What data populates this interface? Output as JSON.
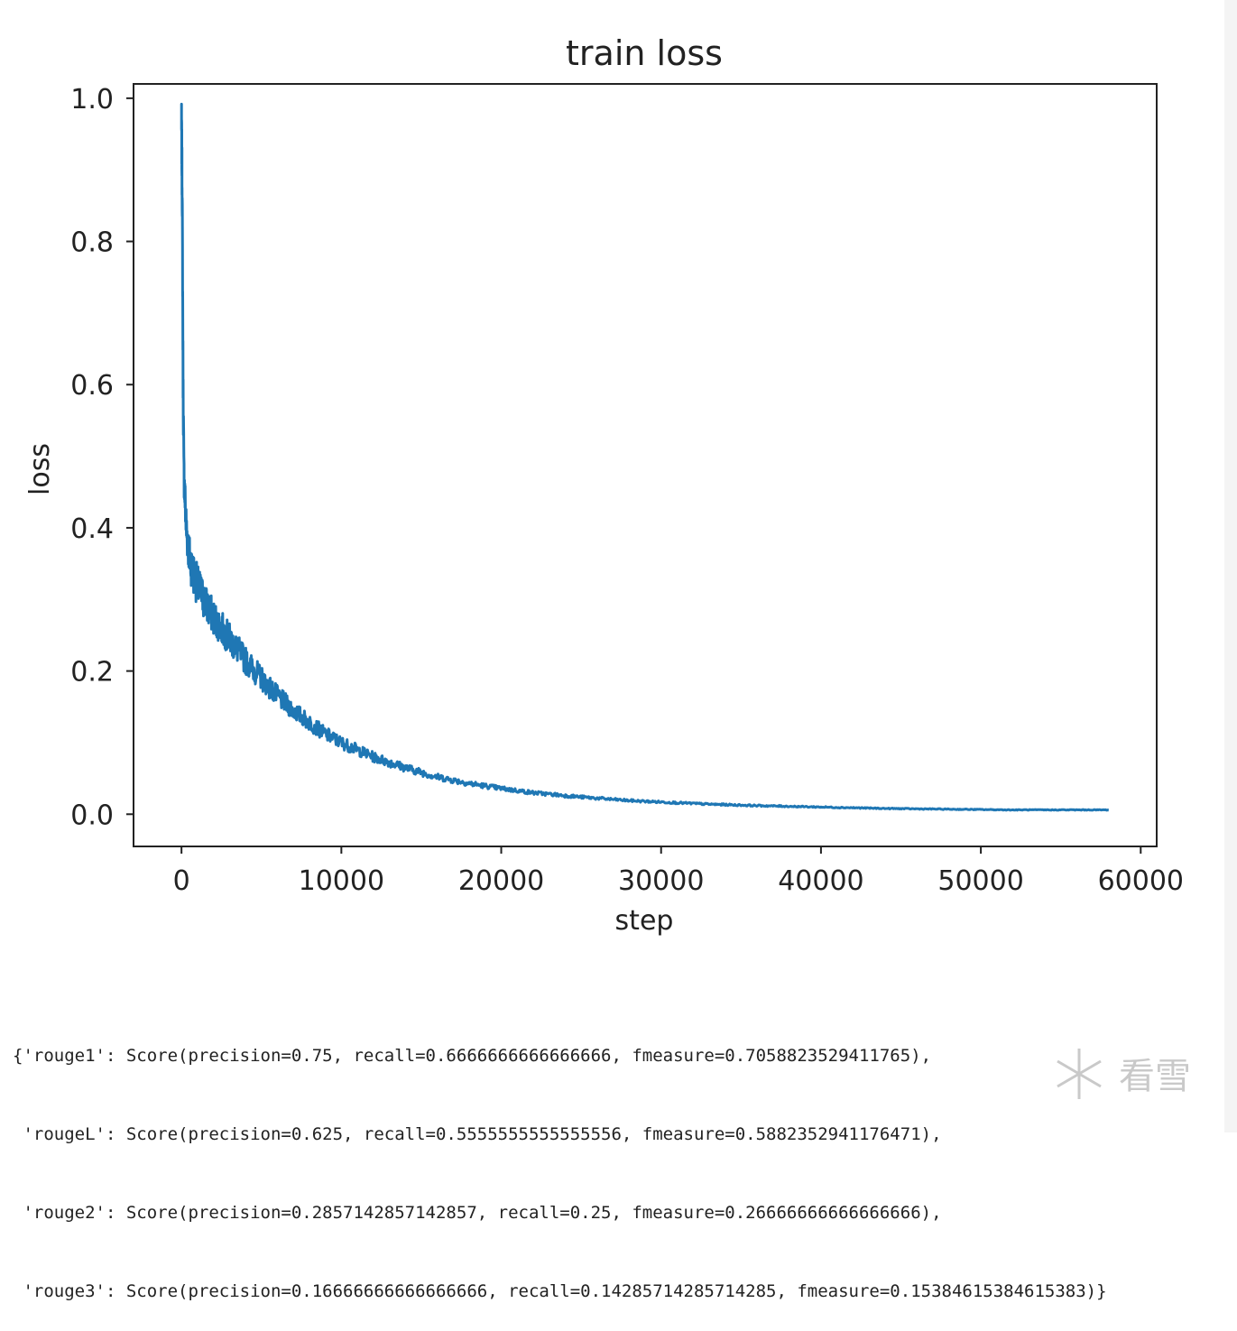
{
  "chart_data": {
    "type": "line",
    "title": "train loss",
    "xlabel": "step",
    "ylabel": "loss",
    "xlim": [
      -3000,
      61000
    ],
    "ylim": [
      -0.045,
      1.02
    ],
    "xticks": [
      0,
      10000,
      20000,
      30000,
      40000,
      50000,
      60000
    ],
    "xtick_labels": [
      "0",
      "10000",
      "20000",
      "30000",
      "40000",
      "50000",
      "60000"
    ],
    "yticks": [
      0.0,
      0.2,
      0.4,
      0.6,
      0.8,
      1.0
    ],
    "ytick_labels": [
      "0.0",
      "0.2",
      "0.4",
      "0.6",
      "0.8",
      "1.0"
    ],
    "grid": false,
    "legend": "none",
    "color": "#1f77b4",
    "series": [
      {
        "x": [
          0,
          50,
          100,
          150,
          200,
          300,
          500,
          700,
          1000,
          1500,
          2000,
          2500,
          3000,
          4000,
          5000,
          6000,
          7000,
          8000,
          9000,
          10000,
          12000,
          14000,
          16000,
          18000,
          20000,
          22000,
          25000,
          28000,
          30000,
          33000,
          36000,
          40000,
          44000,
          48000,
          52000,
          56000,
          58000
        ],
        "y": [
          0.97,
          0.85,
          0.6,
          0.48,
          0.45,
          0.4,
          0.36,
          0.34,
          0.32,
          0.295,
          0.275,
          0.26,
          0.245,
          0.215,
          0.19,
          0.165,
          0.145,
          0.128,
          0.112,
          0.1,
          0.08,
          0.065,
          0.052,
          0.043,
          0.036,
          0.03,
          0.024,
          0.019,
          0.017,
          0.014,
          0.012,
          0.01,
          0.008,
          0.007,
          0.006,
          0.006,
          0.006
        ]
      }
    ]
  },
  "output": {
    "lines": [
      "{'rouge1': Score(precision=0.75, recall=0.6666666666666666, fmeasure=0.7058823529411765),",
      " 'rougeL': Score(precision=0.625, recall=0.5555555555555556, fmeasure=0.5882352941176471),",
      " 'rouge2': Score(precision=0.2857142857142857, recall=0.25, fmeasure=0.26666666666666666),",
      " 'rouge3': Score(precision=0.16666666666666666, recall=0.14285714285714285, fmeasure=0.15384615384615383)}"
    ]
  },
  "watermark": {
    "text": "看雪"
  }
}
